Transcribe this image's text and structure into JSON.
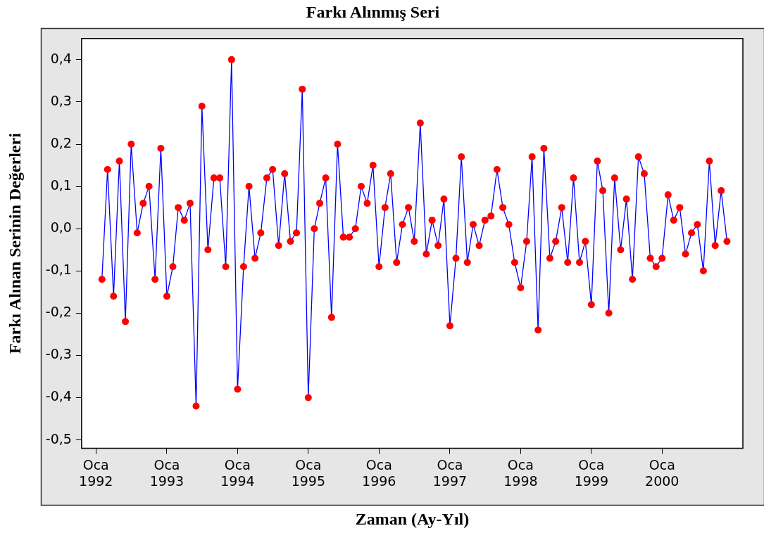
{
  "chart_data": {
    "type": "line",
    "title": "Farkı Alınmış Seri",
    "xlabel": "Zaman (Ay-Yıl)",
    "ylabel": "Farkı Alınan Serinin Değerleri",
    "x": [
      "1992-02",
      "1992-03",
      "1992-04",
      "1992-05",
      "1992-06",
      "1992-07",
      "1992-08",
      "1992-09",
      "1992-10",
      "1992-11",
      "1992-12",
      "1993-01",
      "1993-02",
      "1993-03",
      "1993-04",
      "1993-05",
      "1993-06",
      "1993-07",
      "1993-08",
      "1993-09",
      "1993-10",
      "1993-11",
      "1993-12",
      "1994-01",
      "1994-02",
      "1994-03",
      "1994-04",
      "1994-05",
      "1994-06",
      "1994-07",
      "1994-08",
      "1994-09",
      "1994-10",
      "1994-11",
      "1994-12",
      "1995-01",
      "1995-02",
      "1995-03",
      "1995-04",
      "1995-05",
      "1995-06",
      "1995-07",
      "1995-08",
      "1995-09",
      "1995-10",
      "1995-11",
      "1995-12",
      "1996-01",
      "1996-02",
      "1996-03",
      "1996-04",
      "1996-05",
      "1996-06",
      "1996-07",
      "1996-08",
      "1996-09",
      "1996-10",
      "1996-11",
      "1996-12",
      "1997-01",
      "1997-02",
      "1997-03",
      "1997-04",
      "1997-05",
      "1997-06",
      "1997-07",
      "1997-08",
      "1997-09",
      "1997-10",
      "1997-11",
      "1997-12",
      "1998-01",
      "1998-02",
      "1998-03",
      "1998-04",
      "1998-05",
      "1998-06",
      "1998-07",
      "1998-08",
      "1998-09",
      "1998-10",
      "1998-11",
      "1998-12",
      "1999-01",
      "1999-02",
      "1999-03",
      "1999-04",
      "1999-05",
      "1999-06",
      "1999-07",
      "1999-08",
      "1999-09",
      "1999-10",
      "1999-11",
      "1999-12",
      "2000-01",
      "2000-02",
      "2000-03",
      "2000-04",
      "2000-05",
      "2000-06",
      "2000-07",
      "2000-08",
      "2000-09",
      "2000-10",
      "2000-11",
      "2000-12"
    ],
    "series": [
      {
        "color": "#0000ff",
        "values": [
          -0.12,
          0.14,
          -0.16,
          0.16,
          -0.22,
          0.2,
          -0.01,
          0.06,
          0.1,
          -0.12,
          0.19,
          -0.16,
          -0.09,
          0.05,
          0.02,
          0.06,
          -0.42,
          0.29,
          -0.05,
          0.12,
          0.12,
          -0.09,
          0.4,
          -0.38,
          -0.09,
          0.1,
          -0.07,
          -0.01,
          0.12,
          0.14,
          -0.04,
          0.13,
          -0.03,
          -0.01,
          0.33,
          -0.4,
          0.0,
          0.06,
          0.12,
          -0.21,
          0.2,
          -0.02,
          -0.02,
          0.0,
          0.1,
          0.06,
          0.15,
          -0.09,
          0.05,
          0.13,
          -0.08,
          0.01,
          0.05,
          -0.03,
          0.25,
          -0.06,
          0.02,
          -0.04,
          0.07,
          -0.23,
          -0.07,
          0.17,
          -0.08,
          0.01,
          -0.04,
          0.02,
          0.03,
          0.14,
          0.05,
          0.01,
          -0.08,
          -0.14,
          -0.03,
          0.17,
          -0.24,
          0.19,
          -0.07,
          -0.03,
          0.05,
          -0.08,
          0.12,
          -0.08,
          -0.03,
          -0.18,
          0.16,
          0.09,
          -0.2,
          0.12,
          -0.05,
          0.07,
          -0.12,
          0.17,
          0.13,
          -0.07,
          -0.09,
          -0.07,
          0.08,
          0.02,
          0.05,
          -0.06,
          -0.01,
          0.01,
          -0.1,
          0.16,
          -0.04,
          0.09,
          -0.03
        ],
        "colors": [
          "#ff0000",
          "#ff0000",
          "#ff0000",
          "#ff0000",
          "#ff0000",
          "#ff0000",
          "#ff0000",
          "#ff0000",
          "#ff0000",
          "#ff0000",
          "#ff0000",
          "#ff0000",
          "#ff0000",
          "#ff0000",
          "#ff0000",
          "#ff0000",
          "#ff0000",
          "#ff0000",
          "#ff0000",
          "#ff0000",
          "#ff0000",
          "#ff0000",
          "#ff0000",
          "#ff0000",
          "#ff0000",
          "#ff0000",
          "#ff0000",
          "#ff0000",
          "#ff0000",
          "#ff0000",
          "#ff0000",
          "#ff0000",
          "#ff0000",
          "#ff0000",
          "#ff0000",
          "#ff0000",
          "#ff0000",
          "#ff0000",
          "#ff0000",
          "#ff0000",
          "#ff0000",
          "#ff0000",
          "#ff0000",
          "#ff0000",
          "#ff0000",
          "#ff0000",
          "#ff0000",
          "#ff0000",
          "#ff0000",
          "#ff0000",
          "#ff0000",
          "#ff0000",
          "#ff0000",
          "#ff0000",
          "#ff0000",
          "#ff0000",
          "#ff0000",
          "#ff0000",
          "#ff0000",
          "#ff0000",
          "#ff0000",
          "#ff0000",
          "#ff0000",
          "#ff0000",
          "#ff0000",
          "#ff0000",
          "#ff0000",
          "#ff0000",
          "#ff0000",
          "#ff0000",
          "#ff0000",
          "#ff0000",
          "#ff0000",
          "#ff0000",
          "#ff0000",
          "#ff0000",
          "#ff0000",
          "#ff0000",
          "#ff0000",
          "#ff0000",
          "#ff0000",
          "#ff0000",
          "#ff0000",
          "#ff0000",
          "#ff0000",
          "#ff0000",
          "#ff0000",
          "#ff0000",
          "#ff0000",
          "#ff0000",
          "#ff0000",
          "#ff0000",
          "#ff0000",
          "#ff0000",
          "#ff0000",
          "#ff0000",
          "#ff0000",
          "#ff0000",
          "#ff0000",
          "#ff0000",
          "#ff0000",
          "#ff0000",
          "#ff0000",
          "#ff0000",
          "#ff0000",
          "#ff0000",
          "#ff0000"
        ]
      }
    ],
    "marker": "circle",
    "line_style": "solid",
    "legend": false,
    "xlim": [
      "1991-10-19",
      "2001-02-21"
    ],
    "xticks": [
      {
        "value": "1992-01",
        "label": "Oca\n1992"
      },
      {
        "value": "1993-01",
        "label": "Oca\n1993"
      },
      {
        "value": "1994-01",
        "label": "Oca\n1994"
      },
      {
        "value": "1995-01",
        "label": "Oca\n1995"
      },
      {
        "value": "1996-01",
        "label": "Oca\n1996"
      },
      {
        "value": "1997-01",
        "label": "Oca\n1997"
      },
      {
        "value": "1998-01",
        "label": "Oca\n1998"
      },
      {
        "value": "1999-01",
        "label": "Oca\n1999"
      },
      {
        "value": "2000-01",
        "label": "Oca\n2000"
      }
    ],
    "ylim": [
      -0.52,
      0.45
    ],
    "yticks": [
      {
        "value": 0.4,
        "label": "0,4"
      },
      {
        "value": 0.3,
        "label": "0,3"
      },
      {
        "value": 0.2,
        "label": "0,2"
      },
      {
        "value": 0.1,
        "label": "0,1"
      },
      {
        "value": 0,
        "label": "0,0"
      },
      {
        "value": -0.1,
        "label": "-0,1"
      },
      {
        "value": -0.2,
        "label": "-0,2"
      },
      {
        "value": -0.3,
        "label": "-0,3"
      },
      {
        "value": -0.4,
        "label": "-0,4"
      },
      {
        "value": -0.5,
        "label": "-0,5"
      }
    ]
  }
}
